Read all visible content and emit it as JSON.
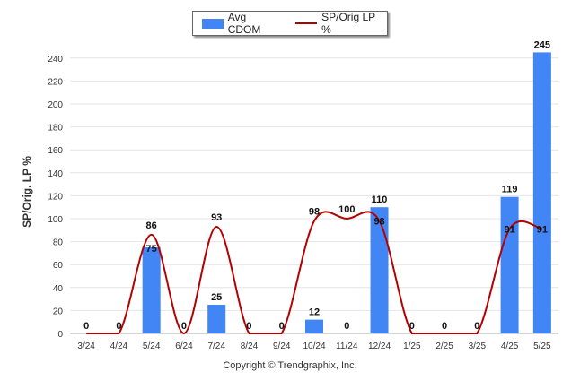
{
  "chart_data": {
    "type": "bar",
    "categories": [
      "3/24",
      "4/24",
      "5/24",
      "6/24",
      "7/24",
      "8/24",
      "9/24",
      "10/24",
      "11/24",
      "12/24",
      "1/25",
      "2/25",
      "3/25",
      "4/25",
      "5/25"
    ],
    "series": [
      {
        "name": "Avg CDOM",
        "type": "bar",
        "color": "#4285f4",
        "values": [
          0,
          0,
          75,
          0,
          25,
          0,
          0,
          12,
          0,
          110,
          0,
          0,
          0,
          119,
          245
        ]
      },
      {
        "name": "SP/Orig LP %",
        "type": "line",
        "color": "#b30000",
        "values": [
          0,
          0,
          86,
          0,
          93,
          0,
          0,
          98,
          100,
          98,
          0,
          0,
          0,
          91,
          91
        ]
      }
    ],
    "bar_labels": [
      "0",
      "0",
      "",
      "0",
      "25",
      "0",
      "0",
      "12",
      "0",
      "110",
      "0",
      "0",
      "0",
      "119",
      "245"
    ],
    "line_labels": [
      "",
      "",
      "86",
      "",
      "93",
      "",
      "",
      "98",
      "100",
      "98",
      "",
      "",
      "",
      "91",
      "91"
    ],
    "inner_bar_labels": [
      "",
      "",
      "75",
      "",
      "",
      "",
      "",
      "",
      "",
      "",
      "",
      "",
      "",
      "",
      ""
    ],
    "ylabel": "SP/Orig. LP %",
    "ylim": [
      0,
      250
    ],
    "yticks": [
      0,
      20,
      40,
      60,
      80,
      100,
      120,
      140,
      160,
      180,
      200,
      220,
      240
    ],
    "grid": true,
    "legend_placement": "top-center"
  },
  "footer": {
    "copyright": "Copyright © Trendgraphix, Inc."
  }
}
